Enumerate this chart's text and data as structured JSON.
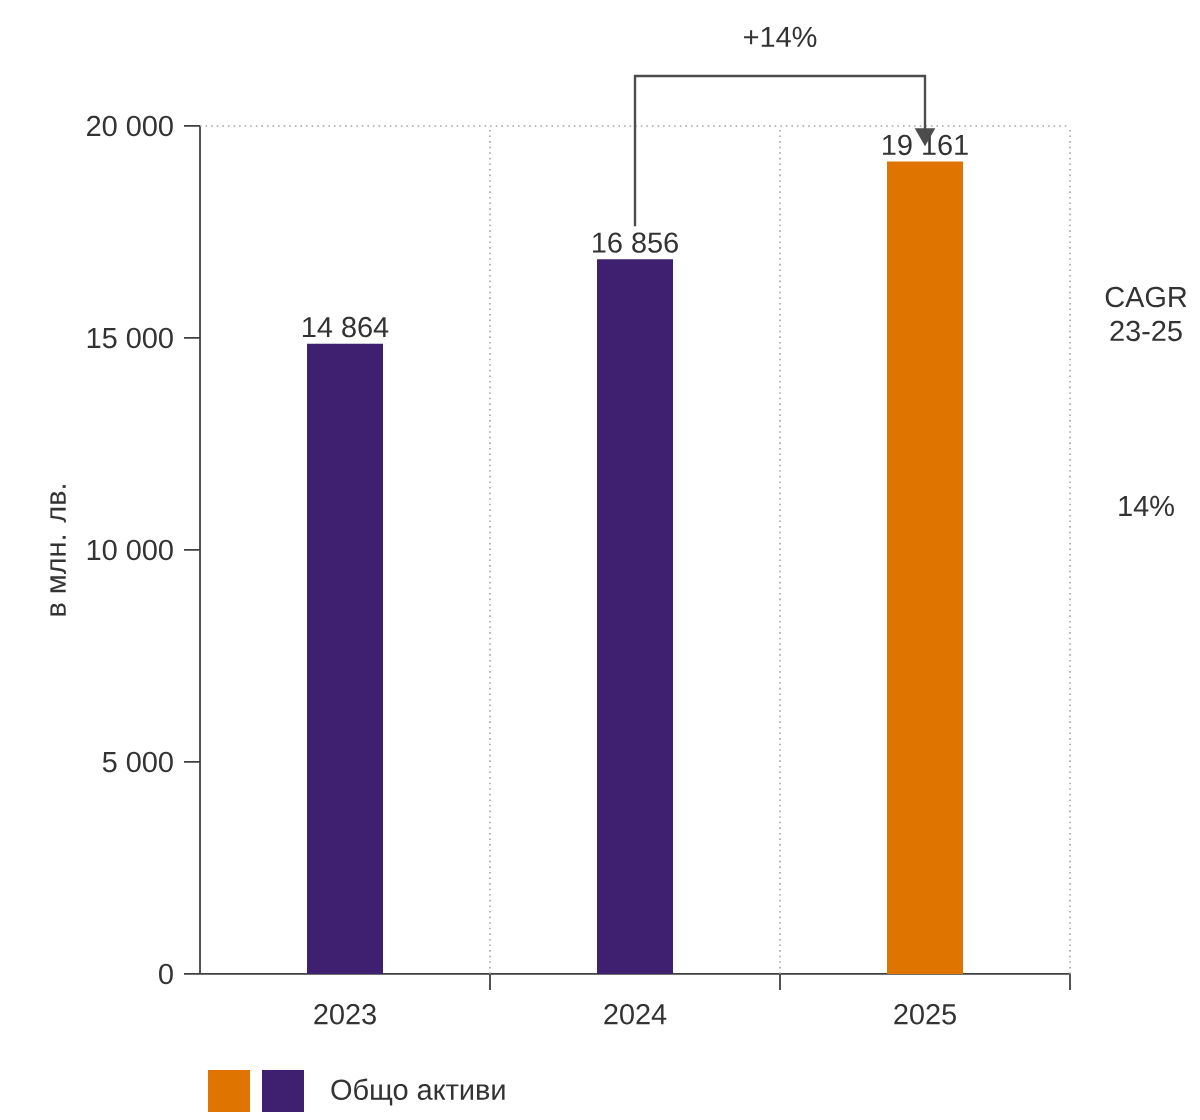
{
  "chart_data": {
    "type": "bar",
    "ylabel": "в млн. лв.",
    "categories": [
      "2023",
      "2024",
      "2025"
    ],
    "series": [
      {
        "name": "Общо активи",
        "colors": [
          "#3f1f6f",
          "#3f1f6f",
          "#df7500"
        ],
        "values": [
          14864,
          16856,
          19161
        ],
        "value_labels": [
          "14 864",
          "16 856",
          "19 161"
        ]
      }
    ],
    "ylim": [
      0,
      20000
    ],
    "yticks": [
      {
        "value": 0,
        "label": "0"
      },
      {
        "value": 5000,
        "label": "5 000"
      },
      {
        "value": 10000,
        "label": "10 000"
      },
      {
        "value": 15000,
        "label": "15 000"
      },
      {
        "value": 20000,
        "label": "20 000"
      }
    ],
    "grid": "x",
    "legend": "bottom",
    "annotations": [
      "+14%",
      "CAGR 23-25",
      "14%"
    ]
  }
}
